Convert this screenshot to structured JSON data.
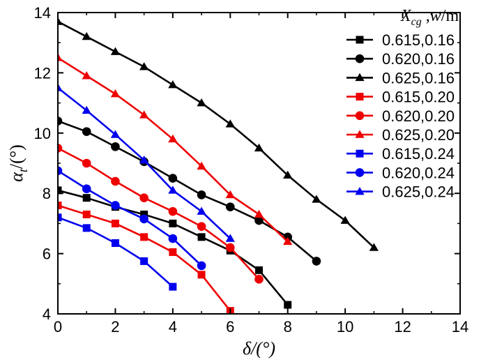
{
  "chart_data": {
    "type": "line",
    "title": "",
    "xlabel": "δ/(°)",
    "ylabel": "αt/(°)",
    "xlim": [
      0,
      14
    ],
    "ylim": [
      4,
      14
    ],
    "xticks": [
      "0",
      "2",
      "4",
      "6",
      "8",
      "10",
      "12",
      "14"
    ],
    "yticks": [
      "4",
      "6",
      "8",
      "10",
      "12",
      "14"
    ],
    "legend_title": "Xcg ,w/m",
    "legend_title_parts": {
      "main": "X",
      "sub": "cg",
      "rest": " ,",
      "w": "w",
      "unit": "/m"
    },
    "legend_position": "top-right",
    "grid": false,
    "series": [
      {
        "name": "0.615,0.16",
        "color": "#000000",
        "marker": "square",
        "x": [
          0,
          1,
          2,
          3,
          4,
          5,
          6,
          7,
          8
        ],
        "y": [
          8.1,
          7.85,
          7.55,
          7.3,
          7.0,
          6.55,
          6.1,
          5.45,
          4.3
        ]
      },
      {
        "name": "0.620,0.16",
        "color": "#000000",
        "marker": "circle",
        "x": [
          0,
          1,
          2,
          3,
          4,
          5,
          6,
          7,
          8,
          9
        ],
        "y": [
          10.4,
          10.05,
          9.55,
          9.05,
          8.5,
          7.95,
          7.55,
          7.1,
          6.55,
          5.75
        ]
      },
      {
        "name": "0.625,0.16",
        "color": "#000000",
        "marker": "triangle",
        "x": [
          0,
          1,
          2,
          3,
          4,
          5,
          6,
          7,
          8,
          9,
          10,
          11
        ],
        "y": [
          13.7,
          13.2,
          12.7,
          12.2,
          11.6,
          11.0,
          10.3,
          9.5,
          8.6,
          7.8,
          7.1,
          6.2
        ]
      },
      {
        "name": "0.615,0.20",
        "color": "#ee0000",
        "marker": "square",
        "x": [
          0,
          1,
          2,
          3,
          4,
          5,
          6
        ],
        "y": [
          7.6,
          7.3,
          7.0,
          6.55,
          6.05,
          5.3,
          4.1
        ]
      },
      {
        "name": "0.620,0.20",
        "color": "#ee0000",
        "marker": "circle",
        "x": [
          0,
          1,
          2,
          3,
          4,
          5,
          6,
          7
        ],
        "y": [
          9.5,
          9.0,
          8.4,
          7.85,
          7.4,
          6.9,
          6.2,
          5.15
        ]
      },
      {
        "name": "0.625,0.20",
        "color": "#ee0000",
        "marker": "triangle",
        "x": [
          0,
          1,
          2,
          3,
          4,
          5,
          6,
          7,
          8
        ],
        "y": [
          12.5,
          11.9,
          11.3,
          10.6,
          9.8,
          8.9,
          7.95,
          7.3,
          6.4
        ]
      },
      {
        "name": "0.615,0.24",
        "color": "#0000ee",
        "marker": "square",
        "x": [
          0,
          1,
          2,
          3,
          4
        ],
        "y": [
          7.2,
          6.85,
          6.35,
          5.75,
          4.9
        ]
      },
      {
        "name": "0.620,0.24",
        "color": "#0000ee",
        "marker": "circle",
        "x": [
          0,
          1,
          2,
          3,
          4,
          5
        ],
        "y": [
          8.75,
          8.15,
          7.6,
          7.15,
          6.5,
          5.6
        ]
      },
      {
        "name": "0.625,0.24",
        "color": "#0000ee",
        "marker": "triangle",
        "x": [
          0,
          1,
          2,
          3,
          4,
          5,
          6
        ],
        "y": [
          11.5,
          10.75,
          9.95,
          9.1,
          8.1,
          7.4,
          6.5
        ]
      }
    ]
  }
}
